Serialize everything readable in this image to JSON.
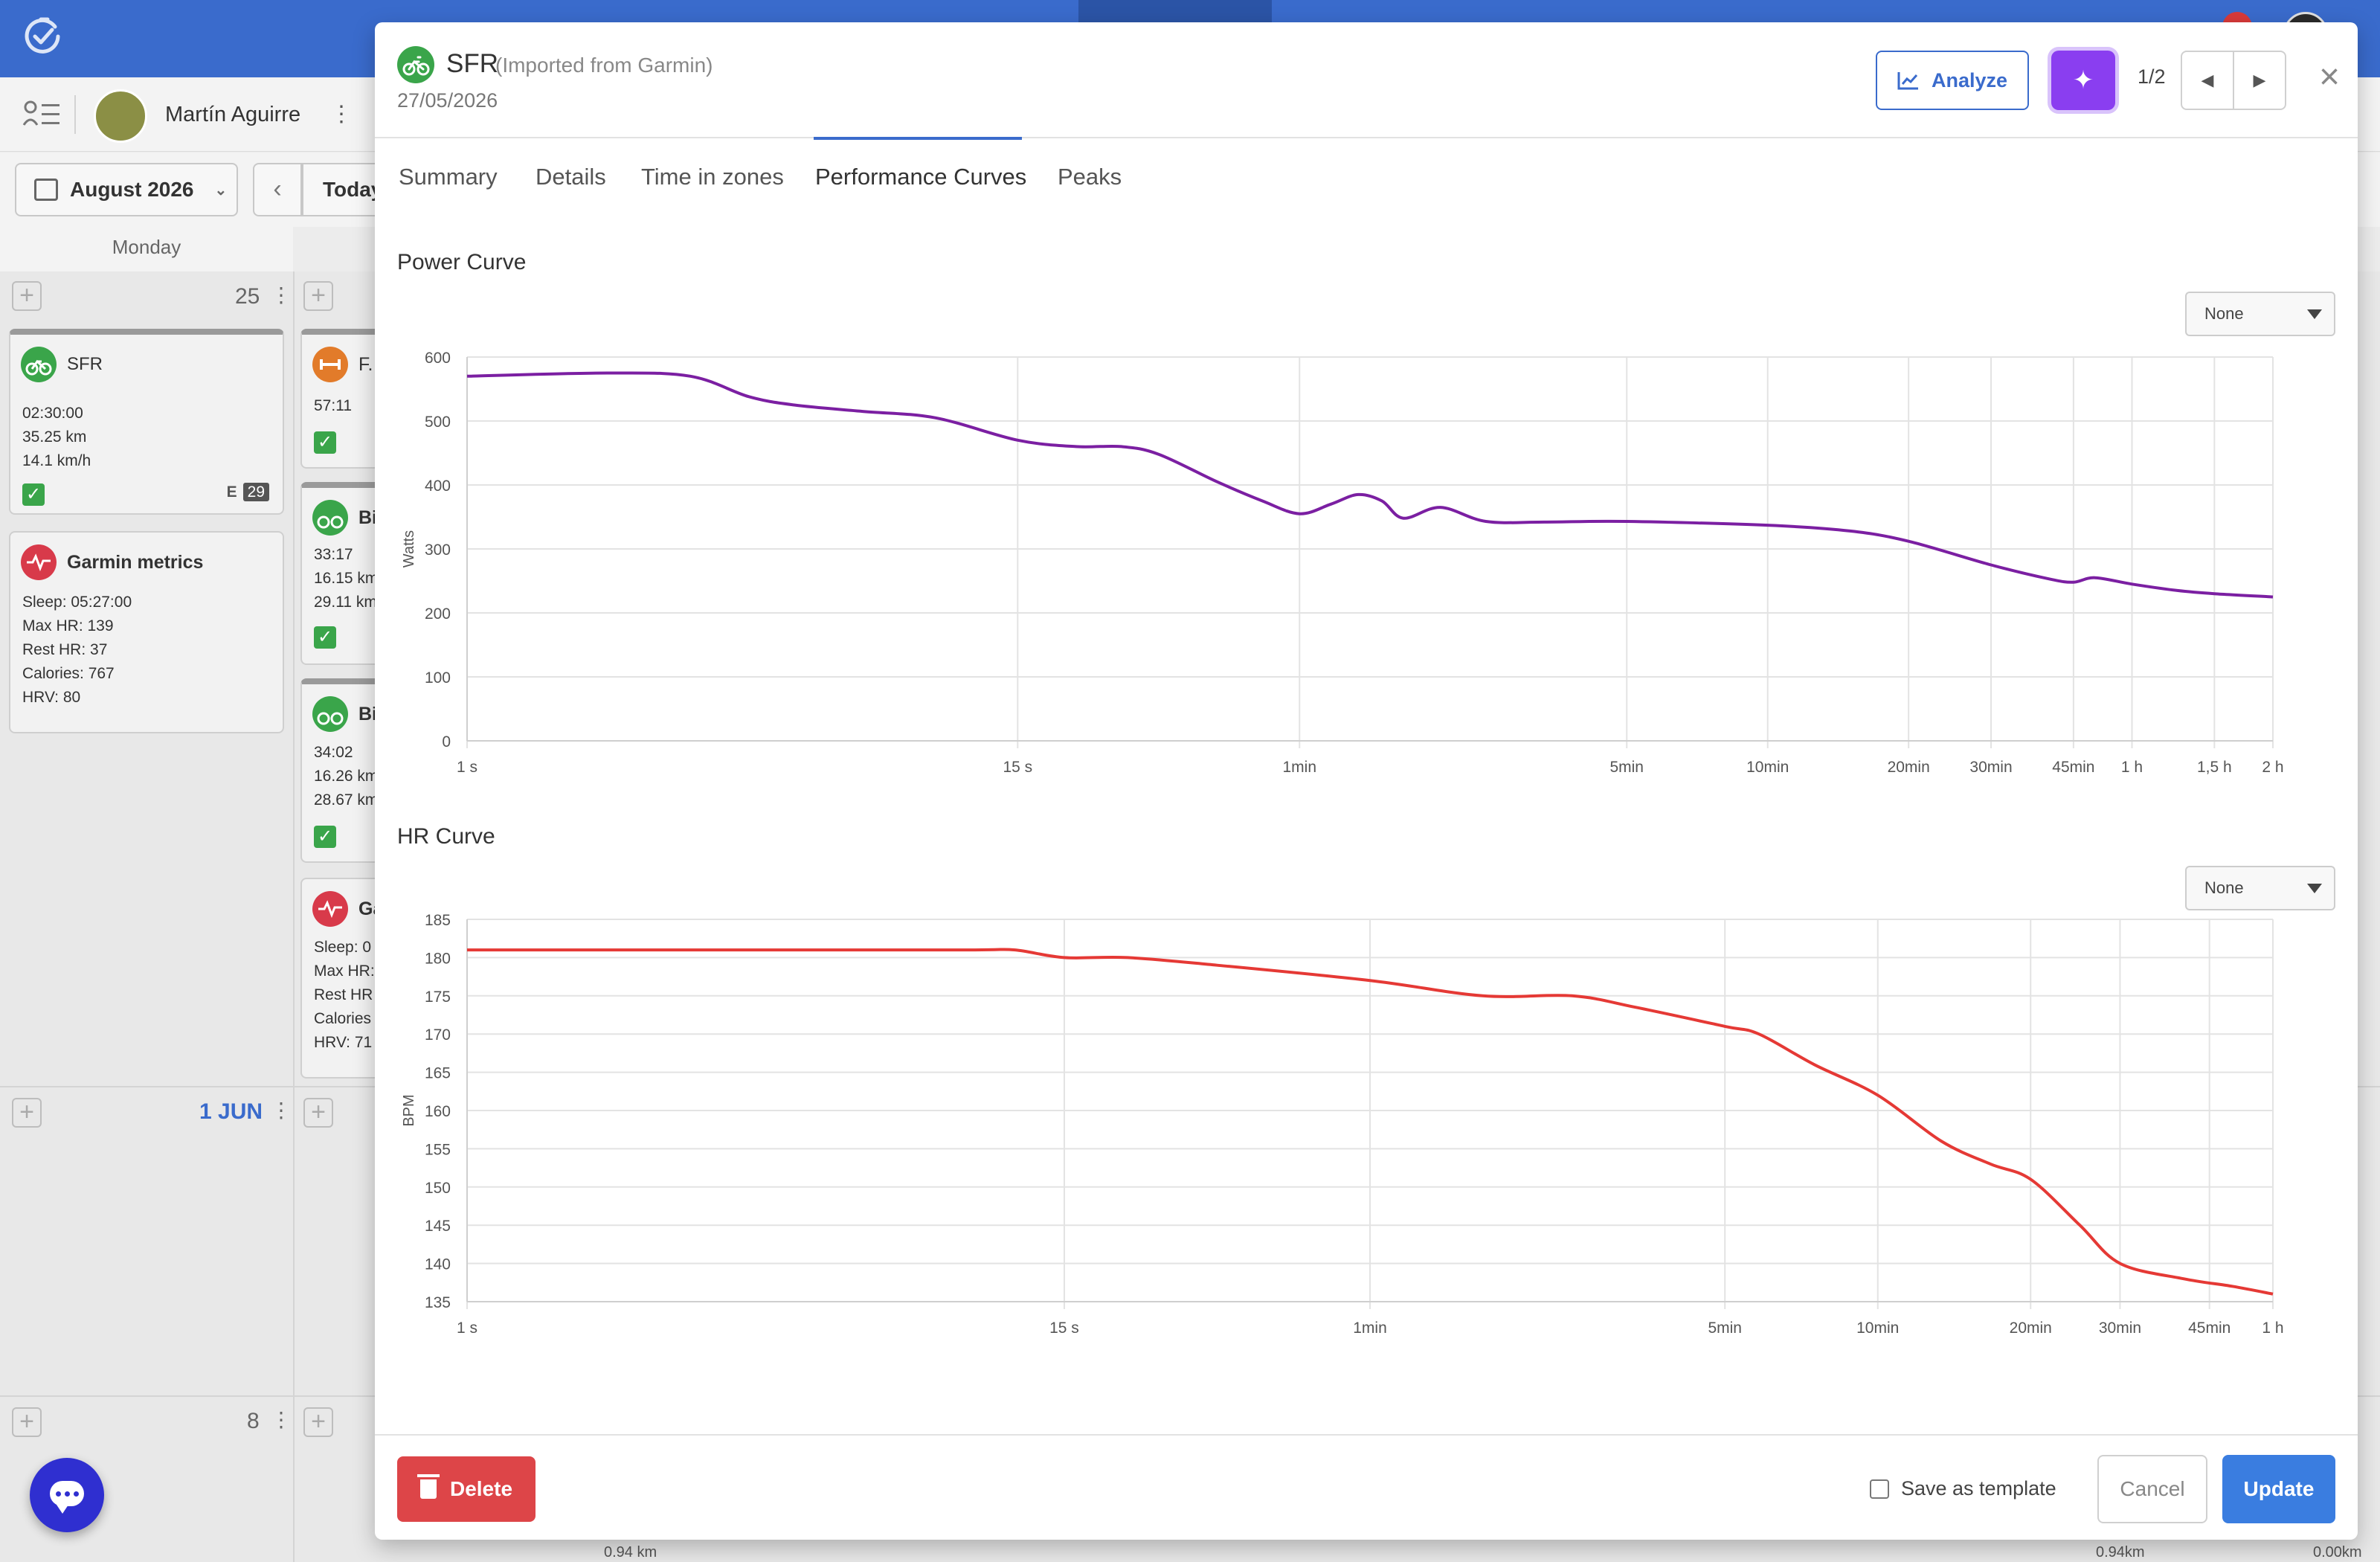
{
  "app": {
    "athlete_name": "Martín Aguirre",
    "month_label": "August 2026",
    "today_label": "Today",
    "weekday_header": "Monday",
    "colors": {
      "brand": "#3a6bcc",
      "success": "#3aa54a",
      "danger": "#dd4548",
      "ai": "#8a3ef0"
    }
  },
  "calendar": {
    "week1": {
      "day_number": "25",
      "card_sfr": {
        "title": "SFR",
        "duration": "02:30:00",
        "distance": "35.25 km",
        "speed": "14.1 km/h",
        "badge_letter": "E",
        "badge_value": "29"
      },
      "card_garmin": {
        "title": "Garmin metrics",
        "sleep": "Sleep: 05:27:00",
        "max_hr": "Max HR: 139",
        "rest_hr": "Rest HR: 37",
        "calories": "Calories: 767",
        "hrv": "HRV: 80"
      },
      "col2": {
        "card1_title": "F.",
        "card1_duration": "57:11",
        "card2_title": "Bi",
        "card2_duration": "33:17",
        "card2_distance": "16.15 km",
        "card2_speed": "29.11 km",
        "card3_title": "Bi",
        "card3_duration": "34:02",
        "card3_distance": "16.26 km",
        "card3_speed": "28.67 km",
        "card4_title": "Ga",
        "card4_sleep": "Sleep: 0",
        "card4_max_hr": "Max HR:",
        "card4_rest_hr": "Rest HR",
        "card4_calories": "Calories",
        "card4_hrv": "HRV: 71"
      }
    },
    "week2": {
      "day_number": "1 JUN"
    },
    "week3": {
      "day_number": "8"
    },
    "bottom_snippets": [
      "0.94 km",
      "0.94km",
      "0.00km"
    ]
  },
  "modal": {
    "activity_name": "SFR",
    "activity_source": "(Imported from Garmin)",
    "activity_date": "27/05/2026",
    "analyze_label": "Analyze",
    "ai_icon": "sparkle-icon",
    "pager": "1/2",
    "tabs": [
      "Summary",
      "Details",
      "Time in zones",
      "Performance Curves",
      "Peaks"
    ],
    "active_tab": "Performance Curves",
    "power_select": "None",
    "hr_select": "None",
    "delete_label": "Delete",
    "save_template_label": "Save as template",
    "cancel_label": "Cancel",
    "update_label": "Update"
  },
  "chart_data": [
    {
      "type": "line",
      "title": "Power Curve",
      "ylabel": "Watts",
      "xlabel": "",
      "ylim": [
        0,
        600
      ],
      "y_ticks": [
        0,
        100,
        200,
        300,
        400,
        500,
        600
      ],
      "x_scale": "log",
      "x_ticks": [
        {
          "label": "1 s",
          "seconds": 1
        },
        {
          "label": "15 s",
          "seconds": 15
        },
        {
          "label": "1min",
          "seconds": 60
        },
        {
          "label": "5min",
          "seconds": 300
        },
        {
          "label": "10min",
          "seconds": 600
        },
        {
          "label": "20min",
          "seconds": 1200
        },
        {
          "label": "30min",
          "seconds": 1800
        },
        {
          "label": "45min",
          "seconds": 2700
        },
        {
          "label": "1 h",
          "seconds": 3600
        },
        {
          "label": "1,5 h",
          "seconds": 5400
        },
        {
          "label": "2 h",
          "seconds": 7200
        }
      ],
      "grid": true,
      "color": "#7b1fa2",
      "series": [
        {
          "x": [
            1,
            2,
            3,
            4,
            5,
            7,
            10,
            15,
            20,
            25,
            30,
            40,
            50,
            60,
            70,
            80,
            90,
            100,
            120,
            150,
            200,
            300,
            600,
            900,
            1200,
            1800,
            2400,
            2700,
            3000,
            3600,
            4500,
            5400,
            7200
          ],
          "values": [
            570,
            575,
            570,
            538,
            525,
            515,
            505,
            470,
            460,
            460,
            448,
            405,
            375,
            355,
            370,
            385,
            375,
            348,
            365,
            343,
            342,
            343,
            337,
            328,
            312,
            275,
            253,
            248,
            255,
            245,
            235,
            230,
            225
          ]
        }
      ]
    },
    {
      "type": "line",
      "title": "HR Curve",
      "ylabel": "BPM",
      "xlabel": "",
      "ylim": [
        135,
        185
      ],
      "y_ticks": [
        135,
        140,
        145,
        150,
        155,
        160,
        165,
        170,
        175,
        180,
        185
      ],
      "x_scale": "log",
      "x_ticks": [
        {
          "label": "1 s",
          "seconds": 1
        },
        {
          "label": "15 s",
          "seconds": 15
        },
        {
          "label": "1min",
          "seconds": 60
        },
        {
          "label": "5min",
          "seconds": 300
        },
        {
          "label": "10min",
          "seconds": 600
        },
        {
          "label": "20min",
          "seconds": 1200
        },
        {
          "label": "30min",
          "seconds": 1800
        },
        {
          "label": "45min",
          "seconds": 2700
        },
        {
          "label": "1 h",
          "seconds": 3600
        }
      ],
      "grid": true,
      "color": "#e53935",
      "series": [
        {
          "x": [
            1,
            2,
            5,
            10,
            12,
            15,
            20,
            30,
            60,
            100,
            150,
            200,
            300,
            350,
            450,
            600,
            800,
            1000,
            1200,
            1500,
            1800,
            2400,
            3000,
            3600
          ],
          "values": [
            181,
            181,
            181,
            181,
            181,
            180,
            180,
            179,
            177,
            175,
            175,
            173.5,
            171,
            170,
            166,
            162,
            156,
            153,
            151,
            145,
            140,
            138,
            137,
            136
          ]
        }
      ]
    }
  ]
}
